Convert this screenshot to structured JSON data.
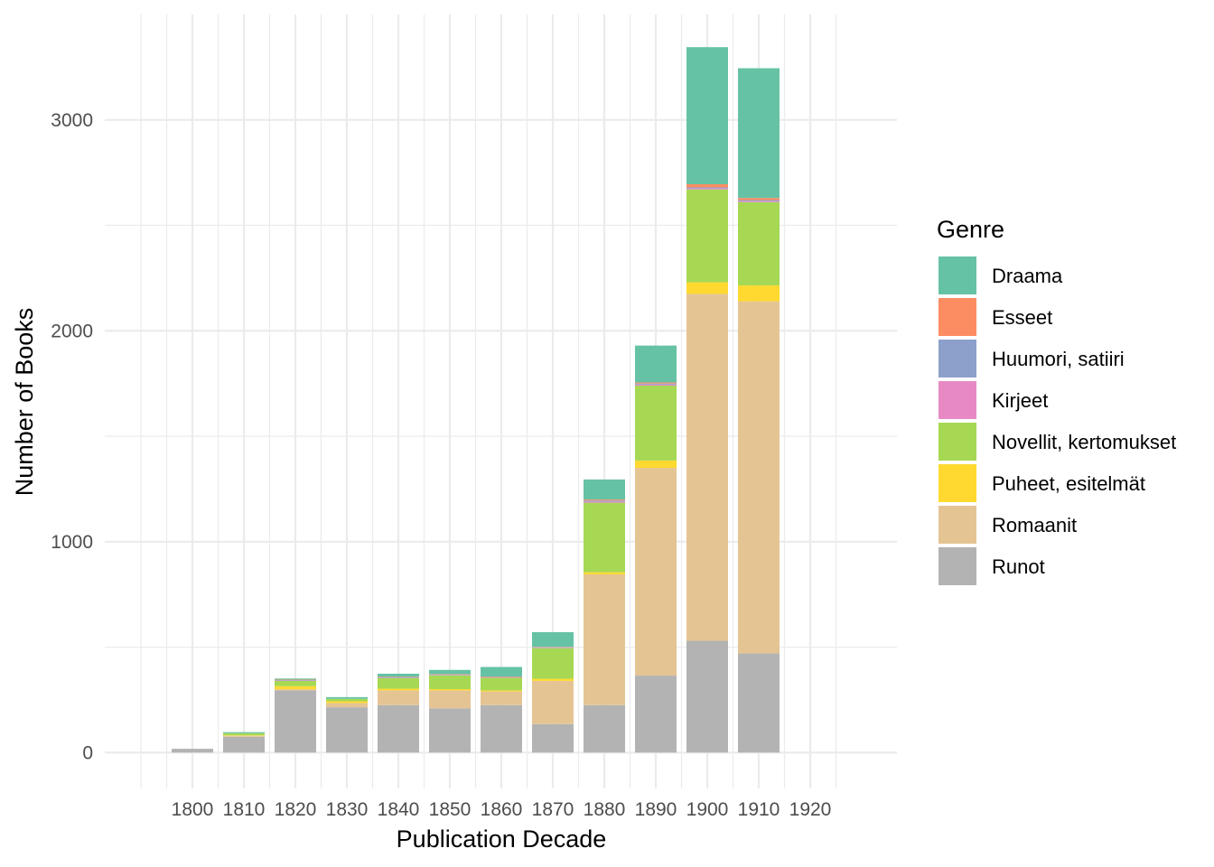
{
  "chart_data": {
    "type": "bar",
    "stacked": true,
    "xlabel": "Publication Decade",
    "ylabel": "Number of Books",
    "x_ticks": [
      "1800",
      "1810",
      "1820",
      "1830",
      "1840",
      "1850",
      "1860",
      "1870",
      "1880",
      "1890",
      "1900",
      "1910",
      "1920"
    ],
    "y_ticks": [
      "0",
      "1000",
      "2000",
      "3000"
    ],
    "ylim": [
      -170,
      3500
    ],
    "grid": true,
    "legend_title": "Genre",
    "legend_position": "right",
    "categories": [
      "1800",
      "1810",
      "1820",
      "1830",
      "1840",
      "1850",
      "1860",
      "1870",
      "1880",
      "1890",
      "1900",
      "1910"
    ],
    "series": [
      {
        "name": "Runot",
        "color": "#B3B3B3",
        "values": [
          18,
          75,
          295,
          215,
          225,
          210,
          225,
          135,
          225,
          365,
          530,
          470
        ]
      },
      {
        "name": "Romaanit",
        "color": "#E5C494",
        "values": [
          0,
          5,
          5,
          20,
          70,
          85,
          65,
          205,
          620,
          985,
          1645,
          1670
        ]
      },
      {
        "name": "Puheet, esitelmät",
        "color": "#FFD92F",
        "values": [
          0,
          2,
          15,
          8,
          8,
          6,
          5,
          10,
          10,
          35,
          55,
          75
        ]
      },
      {
        "name": "Novellit, kertomukset",
        "color": "#A6D854",
        "values": [
          0,
          10,
          25,
          12,
          50,
          65,
          60,
          145,
          330,
          355,
          440,
          395
        ]
      },
      {
        "name": "Kirjeet",
        "color": "#E78AC3",
        "values": [
          0,
          0,
          2,
          0,
          2,
          2,
          2,
          2,
          5,
          5,
          5,
          5
        ]
      },
      {
        "name": "Huumori, satiiri",
        "color": "#8DA0CB",
        "values": [
          0,
          0,
          2,
          0,
          2,
          2,
          2,
          2,
          5,
          5,
          5,
          5
        ]
      },
      {
        "name": "Esseet",
        "color": "#FC8D62",
        "values": [
          0,
          0,
          2,
          0,
          2,
          2,
          2,
          2,
          5,
          5,
          15,
          10
        ]
      },
      {
        "name": "Draama",
        "color": "#66C2A5",
        "values": [
          0,
          5,
          5,
          8,
          15,
          20,
          45,
          70,
          95,
          175,
          650,
          615
        ]
      }
    ]
  }
}
